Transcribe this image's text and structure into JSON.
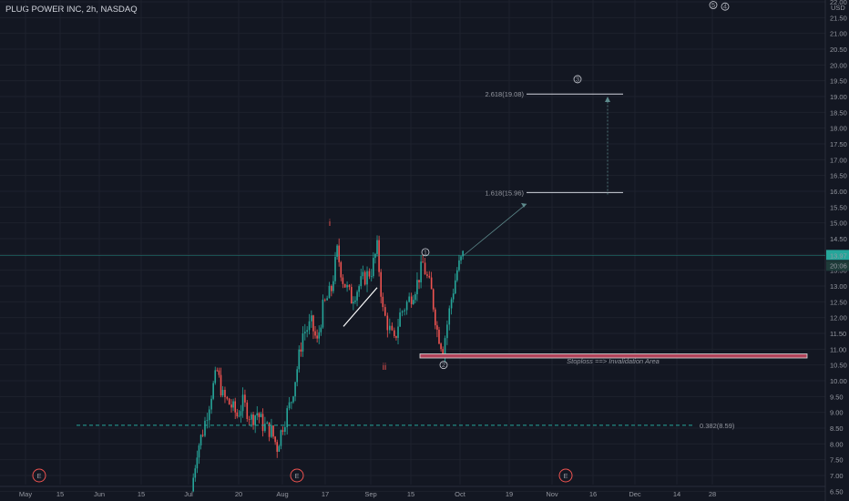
{
  "header": {
    "title": "PLUG POWER INC, 2h, NASDAQ"
  },
  "price_axis": {
    "currency": "USD",
    "current_price_label": "13.97",
    "countdown_label": "20:06"
  },
  "colors": {
    "background": "#131722",
    "up": "#26a69a",
    "down": "#ef5350",
    "annotation_red": "#ef5350",
    "fib_line": "#d1d4dc",
    "level_0382": "#26a69a",
    "current_price_line": "#26a69a"
  },
  "chart_data": {
    "type": "candlestick",
    "title": "PLUG POWER INC, 2h, NASDAQ",
    "ylim": [
      6.25,
      22.0
    ],
    "y_ticks": [
      6.5,
      7.0,
      7.5,
      8.0,
      8.5,
      9.0,
      9.5,
      10.0,
      10.5,
      11.0,
      11.5,
      12.0,
      12.5,
      13.0,
      13.5,
      14.0,
      14.5,
      15.0,
      15.5,
      16.0,
      16.5,
      17.0,
      17.5,
      18.0,
      18.5,
      19.0,
      19.5,
      20.0,
      20.5,
      21.0,
      21.5,
      22.0
    ],
    "x_ticks": [
      "May",
      "15",
      "Jun",
      "15",
      "Jul",
      "20",
      "Aug",
      "17",
      "Sep",
      "15",
      "Oct",
      "19",
      "Nov",
      "16",
      "Dec",
      "14",
      "28"
    ],
    "price_path_daily_closes": [
      [
        "2020-06-29",
        6.5
      ],
      [
        "2020-07-01",
        7.8
      ],
      [
        "2020-07-03",
        8.4
      ],
      [
        "2020-07-06",
        9.6
      ],
      [
        "2020-07-08",
        10.3
      ],
      [
        "2020-07-10",
        9.5
      ],
      [
        "2020-07-13",
        9.2
      ],
      [
        "2020-07-15",
        8.9
      ],
      [
        "2020-07-17",
        9.3
      ],
      [
        "2020-07-20",
        8.8
      ],
      [
        "2020-07-22",
        9.0
      ],
      [
        "2020-07-24",
        8.6
      ],
      [
        "2020-07-27",
        8.4
      ],
      [
        "2020-07-29",
        7.9
      ],
      [
        "2020-07-31",
        8.6
      ],
      [
        "2020-08-03",
        9.4
      ],
      [
        "2020-08-05",
        10.4
      ],
      [
        "2020-08-07",
        11.5
      ],
      [
        "2020-08-10",
        11.8
      ],
      [
        "2020-08-12",
        11.2
      ],
      [
        "2020-08-14",
        12.3
      ],
      [
        "2020-08-17",
        12.9
      ],
      [
        "2020-08-19",
        14.1
      ],
      [
        "2020-08-21",
        13.2
      ],
      [
        "2020-08-24",
        12.6
      ],
      [
        "2020-08-26",
        12.9
      ],
      [
        "2020-08-28",
        13.2
      ],
      [
        "2020-08-31",
        13.5
      ],
      [
        "2020-09-02",
        14.2
      ],
      [
        "2020-09-04",
        12.2
      ],
      [
        "2020-09-08",
        11.2
      ],
      [
        "2020-09-10",
        12.1
      ],
      [
        "2020-09-14",
        12.7
      ],
      [
        "2020-09-16",
        13.1
      ],
      [
        "2020-09-18",
        13.7
      ],
      [
        "2020-09-21",
        12.8
      ],
      [
        "2020-09-23",
        11.6
      ],
      [
        "2020-09-25",
        11.0
      ],
      [
        "2020-09-28",
        12.6
      ],
      [
        "2020-09-30",
        13.5
      ],
      [
        "2020-10-02",
        13.97
      ]
    ],
    "horizontal_levels": [
      {
        "label": "2.618(19.08)",
        "value": 19.08,
        "style": "solid"
      },
      {
        "label": "1.618(15.96)",
        "value": 15.96,
        "style": "solid"
      },
      {
        "label": "0.382(8.59)",
        "value": 8.59,
        "style": "dashed"
      },
      {
        "label": "current",
        "value": 13.97,
        "style": "solid"
      }
    ],
    "zone": {
      "label": "Stoploss ==> Invalidation Area",
      "from": 10.75,
      "to": 10.85
    },
    "wave_labels": [
      {
        "text": "i",
        "color": "red"
      },
      {
        "text": "ii",
        "color": "red"
      },
      {
        "text": "1",
        "circled": true
      },
      {
        "text": "2",
        "circled": true
      },
      {
        "text": "3",
        "circled": true
      },
      {
        "text": "4",
        "circled": true
      },
      {
        "text": "5",
        "circled": true
      }
    ],
    "earnings_markers": [
      "E",
      "E",
      "E"
    ],
    "grid": true
  }
}
